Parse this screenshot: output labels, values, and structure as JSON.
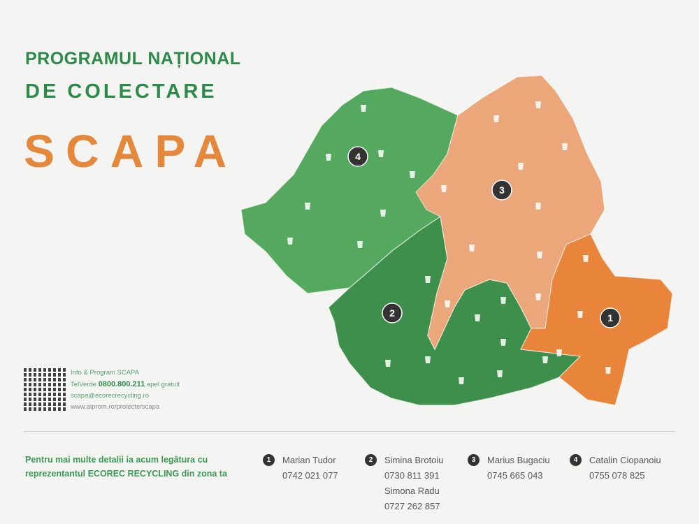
{
  "title": {
    "line1": "PROGRAMUL NAȚIONAL",
    "line2": "DE COLECTARE",
    "line3": "SCAPA"
  },
  "colors": {
    "zone1": "#e8853a",
    "zone2": "#3f8f4c",
    "zone3": "#eba77a",
    "zone4": "#55a95f",
    "green_text": "#2e8a4a",
    "orange_text": "#e6883c"
  },
  "map": {
    "zones": [
      {
        "number": "1"
      },
      {
        "number": "2"
      },
      {
        "number": "3"
      },
      {
        "number": "4"
      }
    ]
  },
  "info": {
    "line1": "Info & Program SCAPA",
    "tel_label": "TelVerde",
    "tel_number": "0800.800.211",
    "tel_note": "apel gratuit",
    "email": "scapa@ecorecrecycling.ro",
    "website": "www.aiprom.ro/proiecte/scapa"
  },
  "footer": {
    "text": "Pentru mai multe detalii ia acum legătura cu reprezentantul ECOREC RECYCLING din zona ta",
    "contacts": [
      {
        "zone": "1",
        "name": "Marian Tudor",
        "phone": "0742 021 077"
      },
      {
        "zone": "2",
        "name": "Simina Brotoiu",
        "phone": "0730 811 391",
        "name2": "Simona Radu",
        "phone2": "0727 262 857"
      },
      {
        "zone": "3",
        "name": "Marius Bugaciu",
        "phone": "0745 665 043"
      },
      {
        "zone": "4",
        "name": "Catalin Ciopanoiu",
        "phone": "0755 078 825"
      }
    ]
  }
}
